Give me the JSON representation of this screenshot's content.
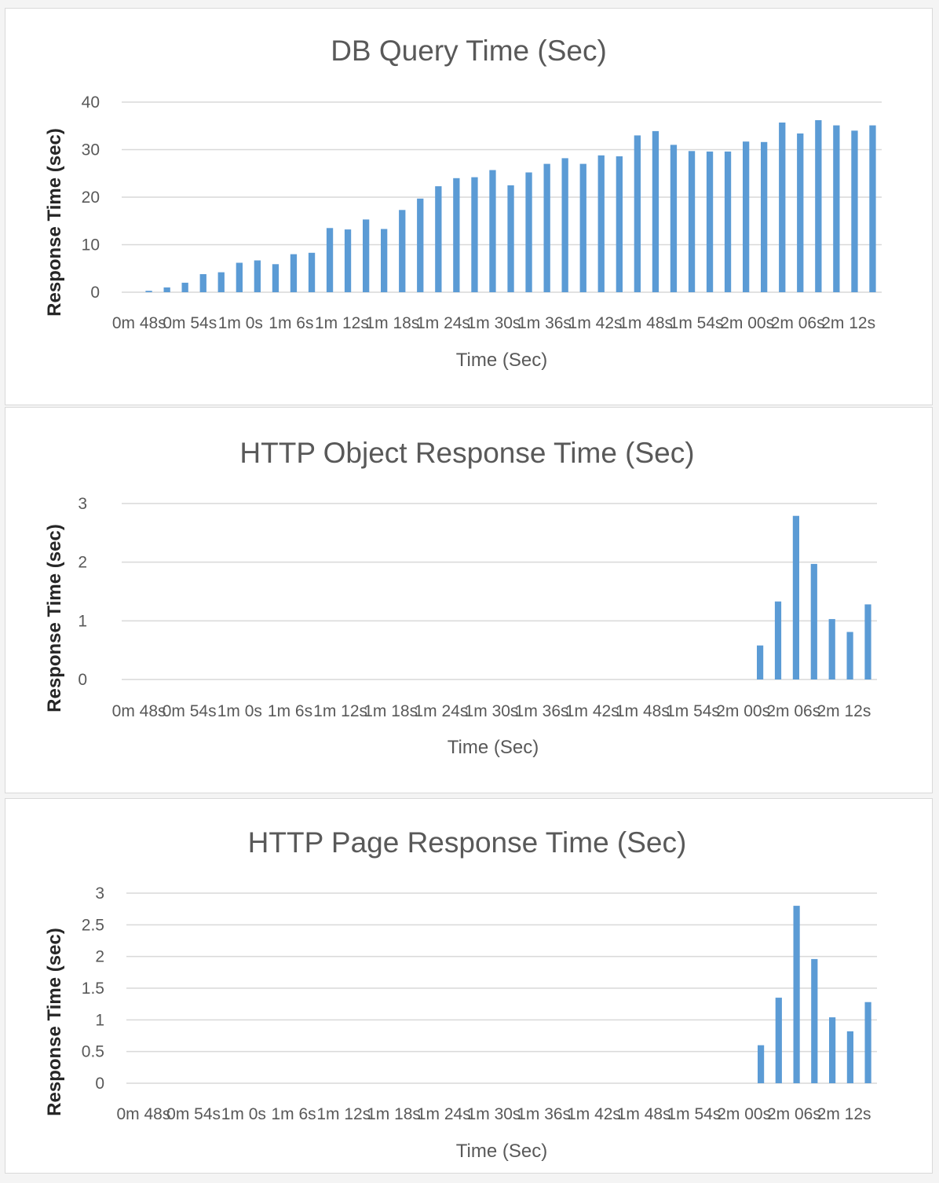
{
  "chart_data": [
    {
      "type": "bar",
      "title": "DB Query Time (Sec)",
      "xlabel": "Time (Sec)",
      "ylabel": "Response Time (sec)",
      "ylim": [
        0,
        40
      ],
      "yticks": [
        "0",
        "10",
        "20",
        "30",
        "40"
      ],
      "xtick_labels": [
        "0m 48s",
        "0m 54s",
        "1m 0s",
        "1m 6s",
        "1m 12s",
        "1m 18s",
        "1m 24s",
        "1m 30s",
        "1m 36s",
        "1m 42s",
        "1m 48s",
        "1m 54s",
        "2m 00s",
        "2m 06s",
        "2m 12s"
      ],
      "grid": true,
      "color": "#5b9bd5",
      "values": [
        0,
        0.3,
        1.0,
        2.0,
        3.8,
        4.2,
        6.2,
        6.7,
        5.9,
        8.0,
        8.3,
        13.5,
        13.2,
        15.3,
        13.3,
        17.3,
        19.7,
        22.3,
        24.0,
        24.2,
        25.7,
        22.5,
        25.2,
        27.0,
        28.2,
        27.0,
        28.8,
        28.6,
        33.0,
        33.9,
        31.0,
        29.7,
        29.6,
        29.6,
        31.7,
        31.6,
        35.7,
        33.4,
        36.2,
        35.1,
        34.0,
        35.1
      ]
    },
    {
      "type": "bar",
      "title": "HTTP Object Response Time (Sec)",
      "xlabel": "Time (Sec)",
      "ylabel": "Response Time (sec)",
      "ylim": [
        0,
        3
      ],
      "yticks": [
        "0",
        "1",
        "2",
        "3"
      ],
      "xtick_labels": [
        "0m 48s",
        "0m 54s",
        "1m 0s",
        "1m 6s",
        "1m 12s",
        "1m 18s",
        "1m 24s",
        "1m 30s",
        "1m 36s",
        "1m 42s",
        "1m 48s",
        "1m 54s",
        "2m 00s",
        "2m 06s",
        "2m 12s"
      ],
      "grid": true,
      "color": "#5b9bd5",
      "values": [
        0,
        0,
        0,
        0,
        0,
        0,
        0,
        0,
        0,
        0,
        0,
        0,
        0,
        0,
        0,
        0,
        0,
        0,
        0,
        0,
        0,
        0,
        0,
        0,
        0,
        0,
        0,
        0,
        0,
        0,
        0,
        0,
        0,
        0,
        0,
        0.58,
        1.33,
        2.79,
        1.97,
        1.03,
        0.81,
        1.28
      ]
    },
    {
      "type": "bar",
      "title": "HTTP Page Response Time (Sec)",
      "xlabel": "Time (Sec)",
      "ylabel": "Response Time (sec)",
      "ylim": [
        0,
        3
      ],
      "yticks": [
        "0",
        "0.5",
        "1",
        "1.5",
        "2",
        "2.5",
        "3"
      ],
      "xtick_labels": [
        "0m 48s",
        "0m 54s",
        "1m 0s",
        "1m 6s",
        "1m 12s",
        "1m 18s",
        "1m 24s",
        "1m 30s",
        "1m 36s",
        "1m 42s",
        "1m 48s",
        "1m 54s",
        "2m 00s",
        "2m 06s",
        "2m 12s"
      ],
      "grid": true,
      "color": "#5b9bd5",
      "values": [
        0,
        0,
        0,
        0,
        0,
        0,
        0,
        0,
        0,
        0,
        0,
        0,
        0,
        0,
        0,
        0,
        0,
        0,
        0,
        0,
        0,
        0,
        0,
        0,
        0,
        0,
        0,
        0,
        0,
        0,
        0,
        0,
        0,
        0,
        0,
        0.6,
        1.35,
        2.8,
        1.96,
        1.04,
        0.82,
        1.28
      ]
    }
  ]
}
